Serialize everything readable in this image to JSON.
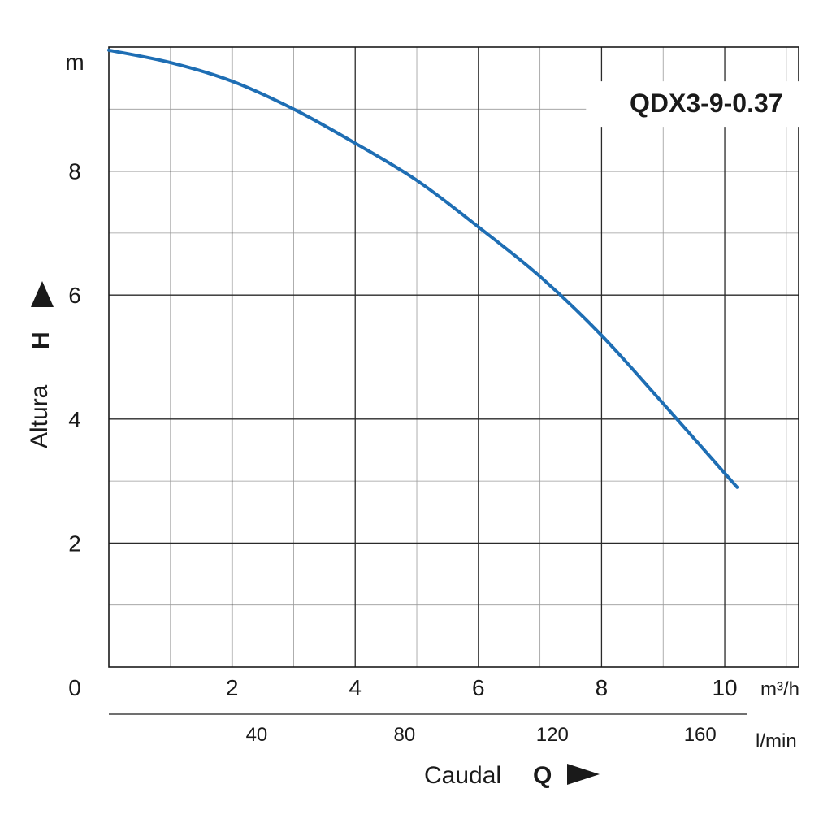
{
  "chart_data": {
    "type": "line",
    "title": "QDX3-9-0.37",
    "xlabel": "Caudal",
    "xsymbol": "Q",
    "ylabel": "Altura",
    "ysymbol": "H",
    "x_unit": "m³/h",
    "x_secondary_unit": "l/min",
    "y_unit": "m",
    "xlim": [
      0,
      11.2
    ],
    "ylim": [
      0,
      10
    ],
    "x_ticks": [
      {
        "value": 2,
        "label": "2"
      },
      {
        "value": 4,
        "label": "4"
      },
      {
        "value": 6,
        "label": "6"
      },
      {
        "value": 8,
        "label": "8"
      },
      {
        "value": 10,
        "label": "10"
      }
    ],
    "x_secondary_ticks": [
      {
        "value": 40,
        "label": "40"
      },
      {
        "value": 80,
        "label": "80"
      },
      {
        "value": 120,
        "label": "120"
      },
      {
        "value": 160,
        "label": "160"
      }
    ],
    "y_ticks": [
      {
        "value": 2,
        "label": "2"
      },
      {
        "value": 4,
        "label": "4"
      },
      {
        "value": 6,
        "label": "6"
      },
      {
        "value": 8,
        "label": "8"
      }
    ],
    "origin_label": "0",
    "grid": true,
    "series": [
      {
        "color": "#1e6eb4",
        "x": [
          0,
          1,
          2,
          3,
          4,
          5,
          6,
          7,
          8,
          9,
          10.2
        ],
        "y": [
          9.95,
          9.75,
          9.45,
          9.0,
          8.45,
          7.85,
          7.1,
          6.3,
          5.35,
          4.25,
          2.9
        ]
      }
    ]
  }
}
